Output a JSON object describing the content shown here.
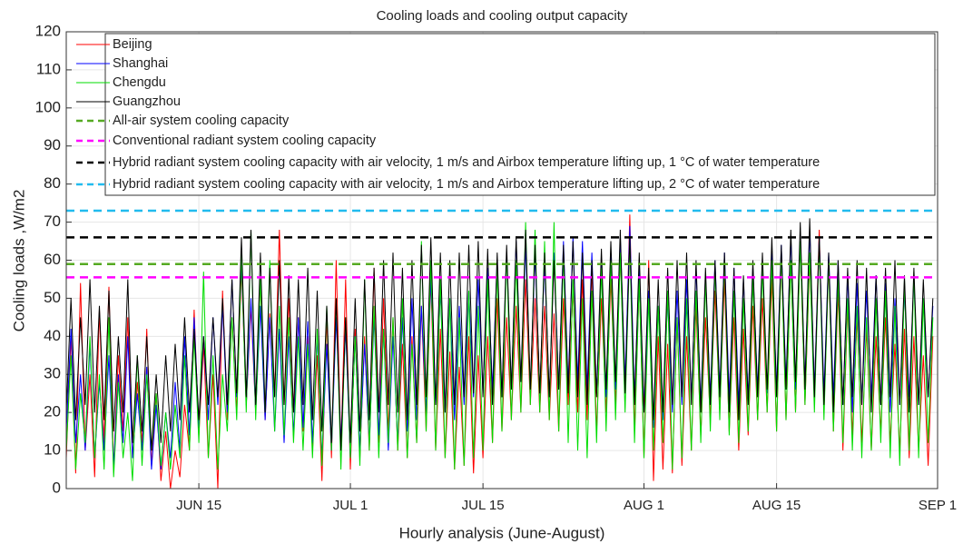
{
  "chart_data": {
    "type": "line",
    "title": "Cooling loads and cooling output capacity",
    "x_label": "Hourly analysis (June-August)",
    "y_label": "Cooling loads ,W/m2",
    "xlim": [
      0,
      92
    ],
    "ylim": [
      0,
      120
    ],
    "xticks": [
      {
        "value": 14,
        "label": "JUN 15"
      },
      {
        "value": 30,
        "label": "JUL 1"
      },
      {
        "value": 44,
        "label": "JUL 15"
      },
      {
        "value": 61,
        "label": "AUG 1"
      },
      {
        "value": 75,
        "label": "AUG 15"
      },
      {
        "value": 92,
        "label": "SEP 1"
      }
    ],
    "yticks": [
      0,
      10,
      20,
      30,
      40,
      50,
      60,
      70,
      80,
      90,
      100,
      110,
      120
    ],
    "grid": true,
    "legend": "top-right",
    "x": [
      0,
      0.5,
      1,
      1.5,
      2,
      2.5,
      3,
      3.5,
      4,
      4.5,
      5,
      5.5,
      6,
      6.5,
      7,
      7.5,
      8,
      8.5,
      9,
      9.5,
      10,
      10.5,
      11,
      11.5,
      12,
      12.5,
      13,
      13.5,
      14,
      14.5,
      15,
      15.5,
      16,
      16.5,
      17,
      17.5,
      18,
      18.5,
      19,
      19.5,
      20,
      20.5,
      21,
      21.5,
      22,
      22.5,
      23,
      23.5,
      24,
      24.5,
      25,
      25.5,
      26,
      26.5,
      27,
      27.5,
      28,
      28.5,
      29,
      29.5,
      30,
      30.5,
      31,
      31.5,
      32,
      32.5,
      33,
      33.5,
      34,
      34.5,
      35,
      35.5,
      36,
      36.5,
      37,
      37.5,
      38,
      38.5,
      39,
      39.5,
      40,
      40.5,
      41,
      41.5,
      42,
      42.5,
      43,
      43.5,
      44,
      44.5,
      45,
      45.5,
      46,
      46.5,
      47,
      47.5,
      48,
      48.5,
      49,
      49.5,
      50,
      50.5,
      51,
      51.5,
      52,
      52.5,
      53,
      53.5,
      54,
      54.5,
      55,
      55.5,
      56,
      56.5,
      57,
      57.5,
      58,
      58.5,
      59,
      59.5,
      60,
      60.5,
      61,
      61.5,
      62,
      62.5,
      63,
      63.5,
      64,
      64.5,
      65,
      65.5,
      66,
      66.5,
      67,
      67.5,
      68,
      68.5,
      69,
      69.5,
      70,
      70.5,
      71,
      71.5,
      72,
      72.5,
      73,
      73.5,
      74,
      74.5,
      75,
      75.5,
      76,
      76.5,
      77,
      77.5,
      78,
      78.5,
      79,
      79.5,
      80,
      80.5,
      81,
      81.5,
      82,
      82.5,
      83,
      83.5,
      84,
      84.5,
      85,
      85.5,
      86,
      86.5,
      87,
      87.5,
      88,
      88.5,
      89,
      89.5,
      90,
      90.5,
      91,
      91.5
    ],
    "series": [
      {
        "name": "Beijing",
        "color": "#ff0000",
        "values": [
          8,
          40,
          4,
          54,
          10,
          30,
          3,
          47,
          12,
          53,
          5,
          35,
          15,
          45,
          8,
          28,
          12,
          42,
          6,
          25,
          2,
          15,
          0,
          10,
          3,
          22,
          10,
          47,
          14,
          38,
          8,
          30,
          0,
          52,
          18,
          45,
          20,
          58,
          22,
          48,
          20,
          55,
          18,
          46,
          25,
          68,
          22,
          50,
          20,
          45,
          15,
          40,
          10,
          35,
          2,
          45,
          8,
          60,
          10,
          55,
          5,
          42,
          8,
          40,
          10,
          58,
          12,
          50,
          15,
          45,
          10,
          38,
          8,
          40,
          12,
          48,
          15,
          55,
          10,
          42,
          8,
          36,
          5,
          32,
          6,
          40,
          4,
          35,
          8,
          40,
          12,
          50,
          15,
          45,
          18,
          48,
          20,
          55,
          22,
          50,
          20,
          48,
          18,
          46,
          15,
          50,
          22,
          52,
          20,
          55,
          18,
          58,
          15,
          50,
          20,
          55,
          22,
          62,
          25,
          72,
          15,
          55,
          8,
          60,
          2,
          40,
          5,
          38,
          4,
          45,
          6,
          40,
          10,
          48,
          14,
          45,
          18,
          52,
          20,
          55,
          15,
          45,
          10,
          42,
          14,
          48,
          18,
          50,
          20,
          55,
          15,
          62,
          18,
          60,
          20,
          65,
          22,
          60,
          25,
          68,
          20,
          60,
          15,
          52,
          10,
          48,
          14,
          45,
          12,
          42,
          10,
          40,
          15,
          45,
          12,
          38,
          10,
          42,
          8,
          40,
          10,
          35,
          6,
          40
        ]
      },
      {
        "name": "Shanghai",
        "color": "#0000ff",
        "values": [
          15,
          42,
          12,
          30,
          10,
          38,
          8,
          28,
          10,
          35,
          6,
          30,
          12,
          40,
          8,
          25,
          10,
          32,
          5,
          22,
          5,
          20,
          8,
          28,
          10,
          40,
          14,
          45,
          16,
          40,
          18,
          45,
          22,
          48,
          20,
          55,
          24,
          60,
          22,
          50,
          20,
          48,
          18,
          45,
          15,
          42,
          12,
          40,
          14,
          45,
          16,
          44,
          12,
          40,
          8,
          38,
          10,
          45,
          12,
          42,
          8,
          40,
          10,
          38,
          12,
          45,
          14,
          42,
          10,
          40,
          12,
          45,
          15,
          50,
          18,
          48,
          20,
          55,
          22,
          52,
          20,
          50,
          18,
          48,
          22,
          52,
          24,
          55,
          25,
          58,
          26,
          60,
          24,
          62,
          26,
          65,
          28,
          64,
          26,
          62,
          25,
          60,
          24,
          62,
          26,
          65,
          27,
          66,
          28,
          65,
          26,
          62,
          25,
          60,
          24,
          62,
          26,
          66,
          28,
          69,
          24,
          58,
          20,
          52,
          16,
          48,
          18,
          50,
          20,
          52,
          22,
          55,
          24,
          58,
          22,
          56,
          24,
          60,
          26,
          62,
          24,
          58,
          22,
          55,
          24,
          58,
          26,
          60,
          25,
          62,
          26,
          64,
          28,
          66,
          26,
          65,
          28,
          68,
          26,
          66,
          25,
          62,
          24,
          60,
          22,
          56,
          20,
          54,
          22,
          52,
          24,
          56,
          22,
          54,
          20,
          50,
          22,
          52,
          24,
          55,
          22,
          50,
          24,
          48
        ]
      },
      {
        "name": "Chengdu",
        "color": "#00dd00",
        "values": [
          10,
          35,
          5,
          25,
          12,
          40,
          8,
          30,
          5,
          45,
          3,
          28,
          8,
          20,
          2,
          35,
          6,
          30,
          10,
          25,
          6,
          20,
          5,
          22,
          8,
          35,
          10,
          40,
          12,
          57,
          8,
          35,
          5,
          30,
          15,
          45,
          18,
          62,
          20,
          68,
          18,
          55,
          20,
          60,
          15,
          48,
          14,
          45,
          12,
          40,
          10,
          38,
          8,
          42,
          6,
          48,
          10,
          50,
          5,
          45,
          8,
          40,
          6,
          55,
          10,
          48,
          8,
          42,
          12,
          45,
          10,
          50,
          8,
          38,
          12,
          65,
          15,
          60,
          10,
          55,
          8,
          50,
          5,
          45,
          6,
          52,
          8,
          48,
          10,
          55,
          12,
          58,
          15,
          62,
          18,
          60,
          20,
          70,
          22,
          68,
          20,
          65,
          18,
          70,
          15,
          62,
          12,
          55,
          10,
          50,
          8,
          52,
          12,
          58,
          15,
          60,
          18,
          62,
          20,
          65,
          12,
          55,
          8,
          50,
          10,
          48,
          12,
          52,
          5,
          45,
          8,
          50,
          10,
          52,
          12,
          55,
          15,
          58,
          18,
          60,
          14,
          52,
          12,
          50,
          15,
          55,
          18,
          58,
          20,
          60,
          15,
          62,
          18,
          60,
          20,
          65,
          22,
          62,
          20,
          65,
          18,
          60,
          15,
          55,
          12,
          50,
          10,
          48,
          8,
          45,
          10,
          50,
          12,
          52,
          8,
          48,
          6,
          55,
          10,
          57,
          8,
          50,
          12,
          45
        ]
      },
      {
        "name": "Guangzhou",
        "color": "#000000",
        "values": [
          20,
          50,
          18,
          45,
          22,
          55,
          20,
          48,
          18,
          52,
          15,
          40,
          20,
          55,
          12,
          35,
          15,
          40,
          10,
          30,
          12,
          35,
          15,
          38,
          18,
          45,
          20,
          42,
          18,
          40,
          22,
          45,
          24,
          50,
          22,
          55,
          25,
          66,
          24,
          68,
          22,
          62,
          20,
          58,
          24,
          60,
          22,
          56,
          20,
          55,
          22,
          58,
          18,
          52,
          15,
          48,
          12,
          50,
          10,
          45,
          12,
          50,
          15,
          55,
          18,
          58,
          20,
          60,
          22,
          62,
          20,
          58,
          18,
          60,
          22,
          64,
          24,
          66,
          22,
          62,
          20,
          60,
          22,
          62,
          24,
          64,
          25,
          65,
          24,
          63,
          22,
          62,
          24,
          64,
          26,
          66,
          28,
          68,
          26,
          64,
          25,
          62,
          24,
          60,
          26,
          64,
          25,
          65,
          24,
          62,
          22,
          60,
          24,
          63,
          26,
          65,
          28,
          68,
          25,
          66,
          22,
          62,
          20,
          58,
          18,
          55,
          20,
          58,
          22,
          60,
          24,
          62,
          22,
          60,
          20,
          58,
          22,
          60,
          24,
          62,
          20,
          58,
          18,
          56,
          22,
          60,
          24,
          62,
          26,
          66,
          24,
          64,
          26,
          68,
          28,
          70,
          26,
          71,
          24,
          66,
          22,
          62,
          20,
          60,
          22,
          58,
          24,
          60,
          22,
          58,
          20,
          56,
          22,
          58,
          24,
          60,
          22,
          56,
          20,
          58,
          22,
          55,
          24,
          50
        ]
      }
    ],
    "reference_lines": [
      {
        "name": "All-air system cooling capacity",
        "color": "#55aa22",
        "value": 59
      },
      {
        "name": "Conventional radiant system cooling capacity",
        "color": "#ff00ff",
        "value": 55.5
      },
      {
        "name": "Hybrid radiant system cooling capacity with air velocity, 1 m/s and Airbox temperature lifting up, 1 °C of water temperature",
        "color": "#000000",
        "value": 66
      },
      {
        "name": "Hybrid radiant system cooling capacity with air velocity, 1 m/s and Airbox temperature lifting up, 2 °C of water temperature",
        "color": "#22bbee",
        "value": 73
      }
    ]
  }
}
